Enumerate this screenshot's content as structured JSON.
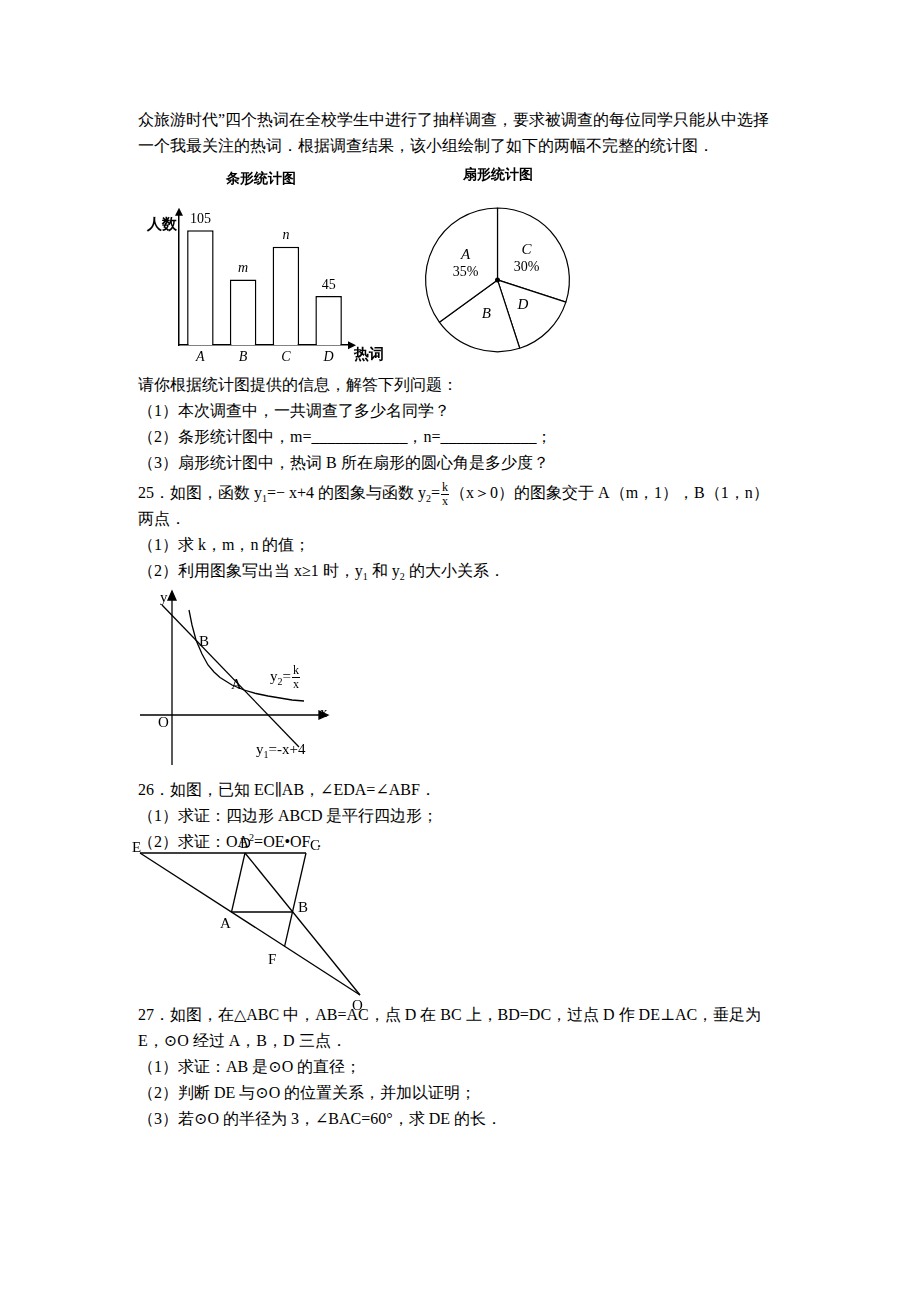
{
  "text_top": [
    [
      "众旅游时代”四个热词在全校学生中进行了抽样调查，要求被调查的每位同学只能从中选择"
    ],
    [
      "一个我最关注的热词．根据调查结果，该小组绘制了如下的两幅不完整的统计图．"
    ]
  ],
  "chart_data": [
    {
      "type": "bar",
      "title": "条形统计图",
      "categories": [
        "A",
        "B",
        "C",
        "D"
      ],
      "values": [
        105,
        60,
        90,
        45
      ],
      "value_labels": [
        "105",
        "m",
        "n",
        "45"
      ],
      "data_labels": true,
      "x_label": "热词",
      "y_label": "人数",
      "ylim": [
        0,
        120
      ],
      "tick_labels": "x",
      "grid": false,
      "color": "#ffffff"
    },
    {
      "type": "pie",
      "title": "扇形统计图",
      "categories": [
        "C",
        "D",
        "B",
        "A"
      ],
      "values": [
        30,
        15,
        20,
        35
      ],
      "value_labels": [
        "30%",
        null,
        null,
        "35%"
      ],
      "data_labels": true,
      "color": "#ffffff"
    }
  ],
  "question_24": [
    [
      "请你根据统计图提供的信息，解答下列问题："
    ],
    [
      "（1）本次调查中，一共调查了多少名同学？"
    ],
    [
      "（2）条形统计图中，m=____________，n=____________；"
    ],
    [
      "（3）扇形统计图中，热词 B 所在扇形的圆心角是多少度？"
    ]
  ],
  "question_25": [
    [
      "25．如图，函数 y",
      {
        "sub": "1"
      },
      "=− x+4 的图象与函数 y",
      {
        "sub": "2"
      },
      "=",
      {
        "frac": [
          "k",
          "x"
        ]
      },
      "（x＞0）的图象交于 A（m，1），B（1，n）"
    ],
    [
      "两点．"
    ],
    [
      "（1）求 k，m，n 的值；"
    ],
    [
      "（2）利用图象写出当 x≥1 时，y",
      {
        "sub": "1"
      },
      " 和 y",
      {
        "sub": "2"
      },
      " 的大小关系．"
    ]
  ],
  "graph": {
    "axis_y": [
      "y"
    ],
    "axis_x": [
      "x"
    ],
    "origin": [
      "O"
    ],
    "point_b": [
      "B"
    ],
    "point_a": [
      "A"
    ],
    "curve": [
      "y",
      {
        "sub": "2"
      },
      "=",
      {
        "frac": [
          "k",
          "x"
        ]
      }
    ],
    "line": [
      "y",
      {
        "sub": "1"
      },
      "=-x+4"
    ]
  },
  "question_26": [
    [
      "26．如图，已知 EC∥AB，∠EDA=∠ABF．"
    ],
    [
      "（1）求证：四边形 ABCD 是平行四边形；"
    ],
    [
      "（2）求证：OA",
      {
        "sup": "2"
      },
      "=OE•OF．"
    ]
  ],
  "geometry": {
    "points": [
      "E",
      "D",
      "C",
      "A",
      "B",
      "F",
      "O"
    ]
  },
  "question_27": [
    [
      "27．如图，在△ABC 中，AB=AC，点 D 在 BC 上，BD=DC，过点 D 作 DE⊥AC，垂足为"
    ],
    [
      "E，⊙O 经过 A，B，D 三点．"
    ],
    [
      "（1）求证：AB 是⊙O 的直径；"
    ],
    [
      "（2）判断 DE 与⊙O 的位置关系，并加以证明；"
    ],
    [
      "（3）若⊙O 的半径为 3，∠BAC=60°，求 DE 的长．"
    ]
  ]
}
